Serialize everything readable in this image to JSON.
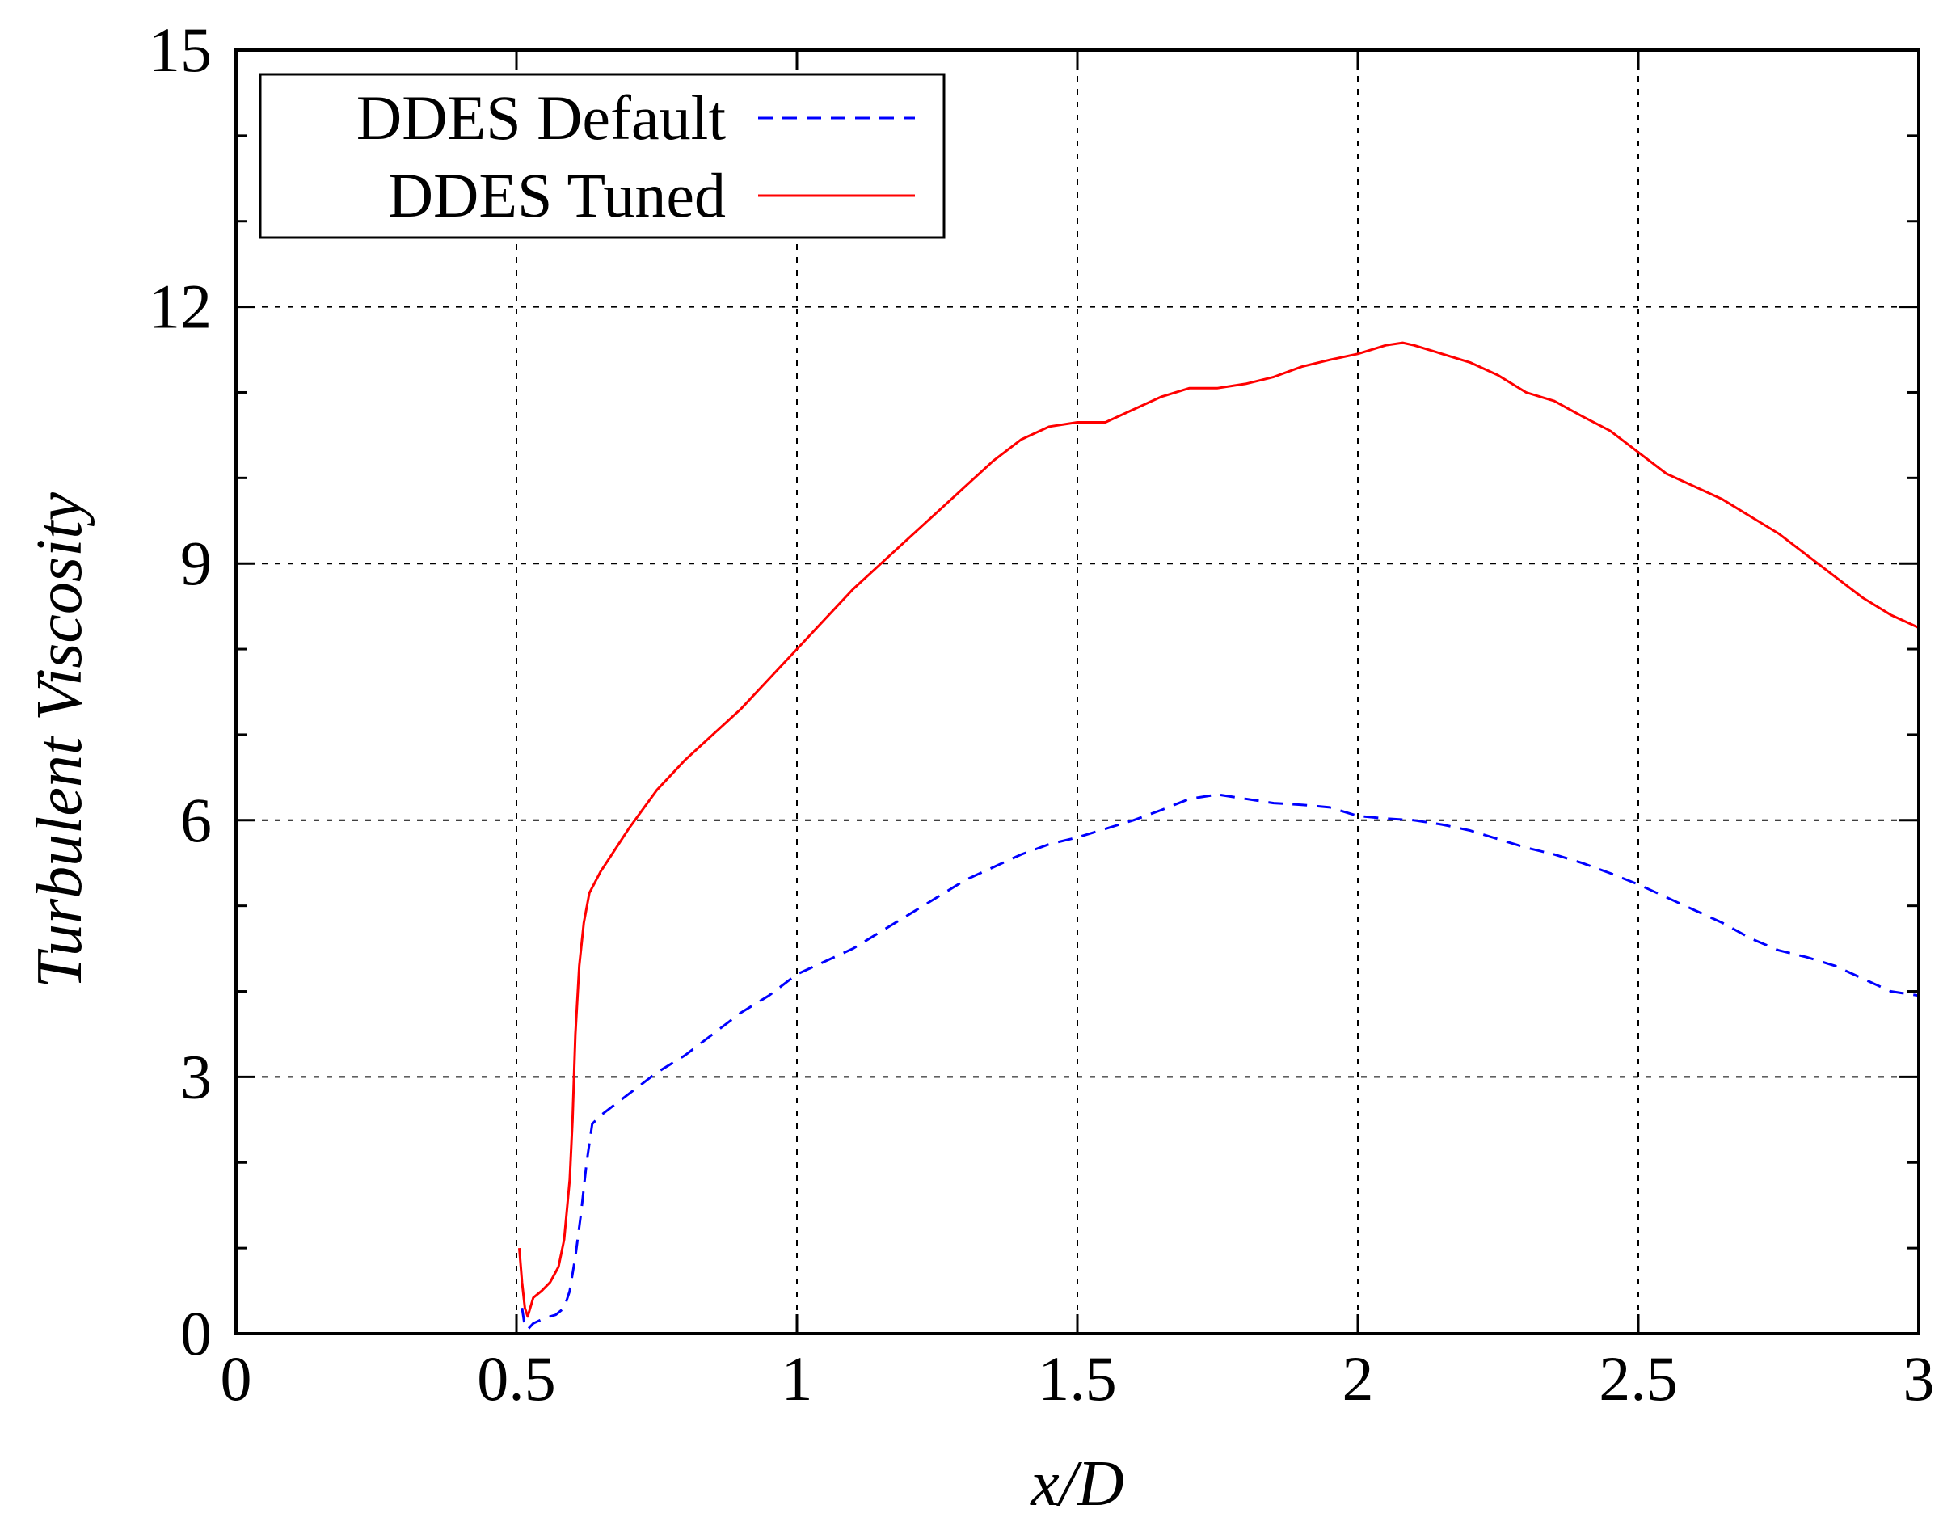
{
  "chart_data": {
    "type": "line",
    "xlabel": "x/D",
    "ylabel": "Turbulent Viscosity",
    "xlim": [
      0,
      3
    ],
    "ylim": [
      0,
      15
    ],
    "xticks": [
      0,
      0.5,
      1,
      1.5,
      2,
      2.5,
      3
    ],
    "xtick_labels": [
      "0",
      "0.5",
      "1",
      "1.5",
      "2",
      "2.5",
      "3"
    ],
    "yticks": [
      0,
      3,
      6,
      9,
      12,
      15
    ],
    "ytick_labels": [
      "0",
      "3",
      "6",
      "9",
      "12",
      "15"
    ],
    "y_minor_step": 1,
    "grid": true,
    "legend_position": "top-left",
    "series": [
      {
        "name": "DDES Default",
        "color": "#0000ff",
        "dash": "dashed",
        "points": [
          [
            0.51,
            0.3
          ],
          [
            0.515,
            0.08
          ],
          [
            0.52,
            0.05
          ],
          [
            0.53,
            0.12
          ],
          [
            0.55,
            0.18
          ],
          [
            0.57,
            0.22
          ],
          [
            0.585,
            0.3
          ],
          [
            0.595,
            0.5
          ],
          [
            0.605,
            0.9
          ],
          [
            0.615,
            1.4
          ],
          [
            0.625,
            2.0
          ],
          [
            0.635,
            2.45
          ],
          [
            0.65,
            2.55
          ],
          [
            0.7,
            2.8
          ],
          [
            0.75,
            3.05
          ],
          [
            0.8,
            3.25
          ],
          [
            0.85,
            3.5
          ],
          [
            0.9,
            3.75
          ],
          [
            0.95,
            3.95
          ],
          [
            1.0,
            4.2
          ],
          [
            1.05,
            4.35
          ],
          [
            1.1,
            4.5
          ],
          [
            1.15,
            4.7
          ],
          [
            1.2,
            4.9
          ],
          [
            1.25,
            5.1
          ],
          [
            1.3,
            5.3
          ],
          [
            1.35,
            5.45
          ],
          [
            1.4,
            5.6
          ],
          [
            1.45,
            5.72
          ],
          [
            1.5,
            5.8
          ],
          [
            1.55,
            5.9
          ],
          [
            1.6,
            6.0
          ],
          [
            1.65,
            6.12
          ],
          [
            1.7,
            6.25
          ],
          [
            1.75,
            6.3
          ],
          [
            1.8,
            6.25
          ],
          [
            1.85,
            6.2
          ],
          [
            1.9,
            6.18
          ],
          [
            1.95,
            6.15
          ],
          [
            2.0,
            6.05
          ],
          [
            2.05,
            6.02
          ],
          [
            2.1,
            6.0
          ],
          [
            2.15,
            5.95
          ],
          [
            2.2,
            5.88
          ],
          [
            2.25,
            5.78
          ],
          [
            2.3,
            5.68
          ],
          [
            2.35,
            5.6
          ],
          [
            2.4,
            5.5
          ],
          [
            2.45,
            5.38
          ],
          [
            2.5,
            5.25
          ],
          [
            2.55,
            5.1
          ],
          [
            2.6,
            4.95
          ],
          [
            2.65,
            4.8
          ],
          [
            2.7,
            4.62
          ],
          [
            2.75,
            4.48
          ],
          [
            2.8,
            4.4
          ],
          [
            2.85,
            4.3
          ],
          [
            2.9,
            4.15
          ],
          [
            2.95,
            4.0
          ],
          [
            3.0,
            3.95
          ]
        ]
      },
      {
        "name": "DDES Tuned",
        "color": "#ff0000",
        "dash": "solid",
        "points": [
          [
            0.505,
            1.0
          ],
          [
            0.51,
            0.6
          ],
          [
            0.515,
            0.3
          ],
          [
            0.52,
            0.2
          ],
          [
            0.53,
            0.42
          ],
          [
            0.545,
            0.5
          ],
          [
            0.56,
            0.6
          ],
          [
            0.575,
            0.78
          ],
          [
            0.585,
            1.1
          ],
          [
            0.595,
            1.8
          ],
          [
            0.6,
            2.5
          ],
          [
            0.605,
            3.5
          ],
          [
            0.612,
            4.3
          ],
          [
            0.62,
            4.8
          ],
          [
            0.63,
            5.15
          ],
          [
            0.65,
            5.4
          ],
          [
            0.7,
            5.9
          ],
          [
            0.75,
            6.35
          ],
          [
            0.8,
            6.7
          ],
          [
            0.85,
            7.0
          ],
          [
            0.9,
            7.3
          ],
          [
            0.95,
            7.65
          ],
          [
            1.0,
            8.0
          ],
          [
            1.05,
            8.35
          ],
          [
            1.1,
            8.7
          ],
          [
            1.15,
            9.0
          ],
          [
            1.2,
            9.3
          ],
          [
            1.25,
            9.6
          ],
          [
            1.3,
            9.9
          ],
          [
            1.35,
            10.2
          ],
          [
            1.4,
            10.45
          ],
          [
            1.45,
            10.6
          ],
          [
            1.5,
            10.65
          ],
          [
            1.55,
            10.65
          ],
          [
            1.6,
            10.8
          ],
          [
            1.65,
            10.95
          ],
          [
            1.7,
            11.05
          ],
          [
            1.75,
            11.05
          ],
          [
            1.8,
            11.1
          ],
          [
            1.85,
            11.18
          ],
          [
            1.9,
            11.3
          ],
          [
            1.95,
            11.38
          ],
          [
            2.0,
            11.45
          ],
          [
            2.05,
            11.55
          ],
          [
            2.08,
            11.58
          ],
          [
            2.1,
            11.55
          ],
          [
            2.15,
            11.45
          ],
          [
            2.2,
            11.35
          ],
          [
            2.25,
            11.2
          ],
          [
            2.3,
            11.0
          ],
          [
            2.35,
            10.9
          ],
          [
            2.4,
            10.72
          ],
          [
            2.45,
            10.55
          ],
          [
            2.5,
            10.3
          ],
          [
            2.55,
            10.05
          ],
          [
            2.6,
            9.9
          ],
          [
            2.65,
            9.75
          ],
          [
            2.7,
            9.55
          ],
          [
            2.75,
            9.35
          ],
          [
            2.8,
            9.1
          ],
          [
            2.85,
            8.85
          ],
          [
            2.9,
            8.6
          ],
          [
            2.95,
            8.4
          ],
          [
            3.0,
            8.25
          ]
        ]
      }
    ]
  }
}
